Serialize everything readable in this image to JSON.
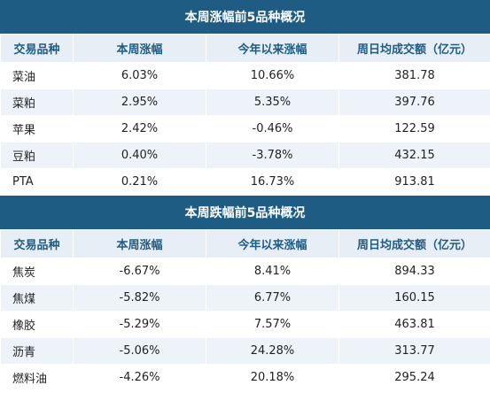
{
  "columns": [
    "交易品种",
    "本周涨幅",
    "今年以来涨幅",
    "周日均成交额（亿元）"
  ],
  "top_gainers": {
    "title": "本周涨幅前5品种概况",
    "rows": [
      {
        "name": "菜油",
        "week": "6.03%",
        "ytd": "10.66%",
        "turnover": "381.78"
      },
      {
        "name": "菜粕",
        "week": "2.95%",
        "ytd": "5.35%",
        "turnover": "397.76"
      },
      {
        "name": "苹果",
        "week": "2.42%",
        "ytd": "-0.46%",
        "turnover": "122.59"
      },
      {
        "name": "豆粕",
        "week": "0.40%",
        "ytd": "-3.78%",
        "turnover": "432.15"
      },
      {
        "name": "PTA",
        "week": "0.21%",
        "ytd": "16.73%",
        "turnover": "913.81"
      }
    ]
  },
  "top_losers": {
    "title": "本周跌幅前5品种概况",
    "rows": [
      {
        "name": "焦炭",
        "week": "-6.67%",
        "ytd": "8.41%",
        "turnover": "894.33"
      },
      {
        "name": "焦煤",
        "week": "-5.82%",
        "ytd": "6.77%",
        "turnover": "160.15"
      },
      {
        "name": "橡胶",
        "week": "-5.29%",
        "ytd": "7.57%",
        "turnover": "463.81"
      },
      {
        "name": "沥青",
        "week": "-5.06%",
        "ytd": "24.28%",
        "turnover": "313.77"
      },
      {
        "name": "燃料油",
        "week": "-4.26%",
        "ytd": "20.18%",
        "turnover": "295.24"
      }
    ]
  }
}
